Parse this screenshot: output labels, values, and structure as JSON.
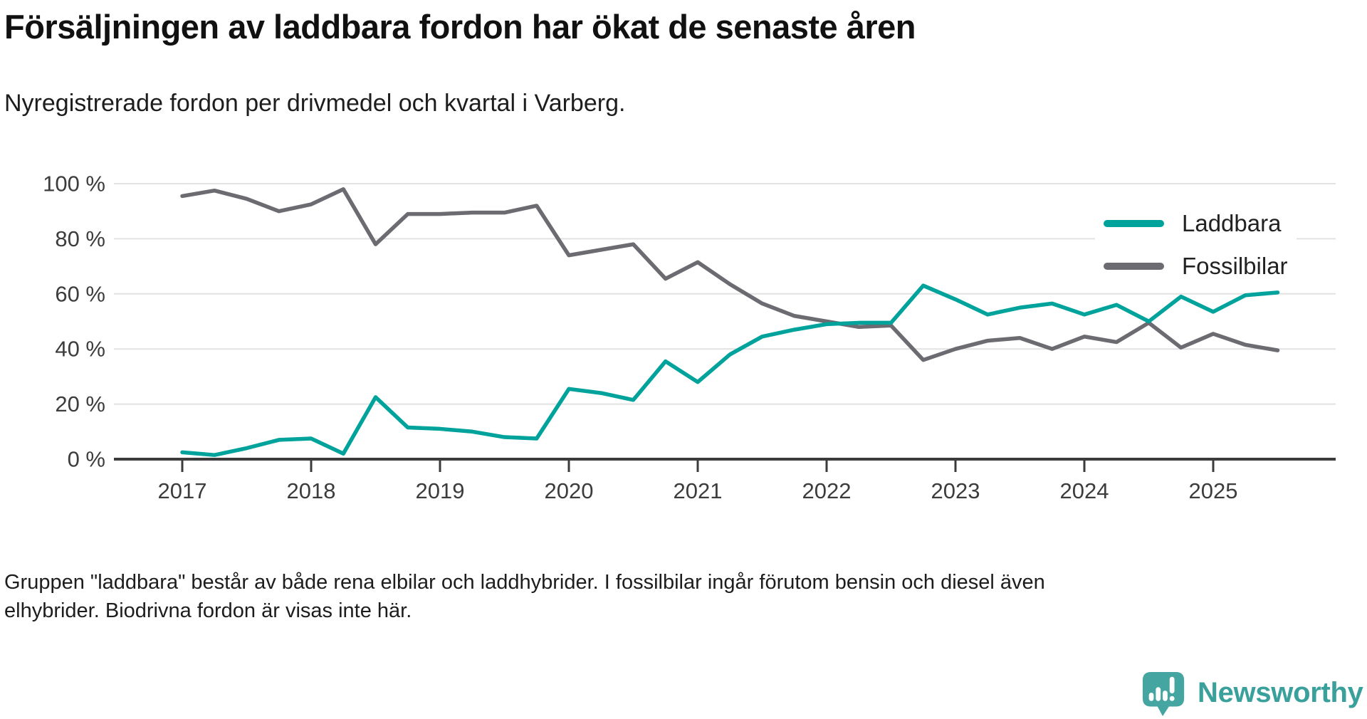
{
  "header": {
    "title": "Försäljningen av laddbara fordon har ökat de senaste åren",
    "subtitle": "Nyregistrerade fordon per drivmedel och kvartal i Varberg."
  },
  "chart_data": {
    "type": "line",
    "title": "Försäljningen av laddbara fordon har ökat de senaste åren",
    "subtitle": "Nyregistrerade fordon per drivmedel och kvartal i Varberg.",
    "xlabel": "",
    "ylabel": "",
    "ylim": [
      0,
      100
    ],
    "grid": "horizontal",
    "legend_position": "top-right",
    "x_tick_labels": [
      "2017",
      "2018",
      "2019",
      "2020",
      "2021",
      "2022",
      "2023",
      "2024",
      "2025"
    ],
    "y_ticks": [
      {
        "value": 0,
        "label": "0 %"
      },
      {
        "value": 20,
        "label": "20 %"
      },
      {
        "value": 40,
        "label": "40 %"
      },
      {
        "value": 60,
        "label": "60 %"
      },
      {
        "value": 80,
        "label": "80 %"
      },
      {
        "value": 100,
        "label": "100 %"
      }
    ],
    "categories": [
      "2017 Q1",
      "2017 Q2",
      "2017 Q3",
      "2017 Q4",
      "2018 Q1",
      "2018 Q2",
      "2018 Q3",
      "2018 Q4",
      "2019 Q1",
      "2019 Q2",
      "2019 Q3",
      "2019 Q4",
      "2020 Q1",
      "2020 Q2",
      "2020 Q3",
      "2020 Q4",
      "2021 Q1",
      "2021 Q2",
      "2021 Q3",
      "2021 Q4",
      "2022 Q1",
      "2022 Q2",
      "2022 Q3",
      "2022 Q4",
      "2023 Q1",
      "2023 Q2",
      "2023 Q3",
      "2023 Q4",
      "2024 Q1",
      "2024 Q2",
      "2024 Q3",
      "2024 Q4",
      "2025 Q1",
      "2025 Q2",
      "2025 Q3"
    ],
    "series": [
      {
        "name": "Laddbara",
        "color": "#00a39c",
        "values": [
          2.5,
          1.5,
          4,
          7,
          7.5,
          2,
          22.5,
          11.5,
          11,
          10,
          8,
          7.5,
          25.5,
          24,
          21.5,
          35.5,
          28,
          38,
          44.5,
          47,
          49,
          49.5,
          49.5,
          63,
          58,
          52.5,
          55,
          56.5,
          52.5,
          56,
          50,
          59,
          53.5,
          59.5,
          60.5
        ]
      },
      {
        "name": "Fossilbilar",
        "color": "#6b6b71",
        "values": [
          95.5,
          97.5,
          94.5,
          90,
          92.5,
          98,
          78,
          89,
          89,
          89.5,
          89.5,
          92,
          74,
          76,
          78,
          65.5,
          71.5,
          63.5,
          56.5,
          52,
          50,
          48,
          48.5,
          36,
          40,
          43,
          44,
          40,
          44.5,
          42.5,
          49.5,
          40.5,
          45.5,
          41.5,
          39.5
        ]
      }
    ]
  },
  "footer": {
    "note_line1": "Gruppen \"laddbara\" består av både rena elbilar och laddhybrider. I fossilbilar ingår förutom bensin och diesel även",
    "note_line2": "elhybrider. Biodrivna fordon är visas inte här."
  },
  "branding": {
    "logo_text": "Newsworthy"
  },
  "colors": {
    "accent_teal": "#00a39c",
    "fossil_gray": "#6b6b71",
    "gridline": "#e2e2e2",
    "axis": "#3b3b3b",
    "tick_text": "#3c3c3c",
    "logo_teal": "#45a5a0"
  }
}
